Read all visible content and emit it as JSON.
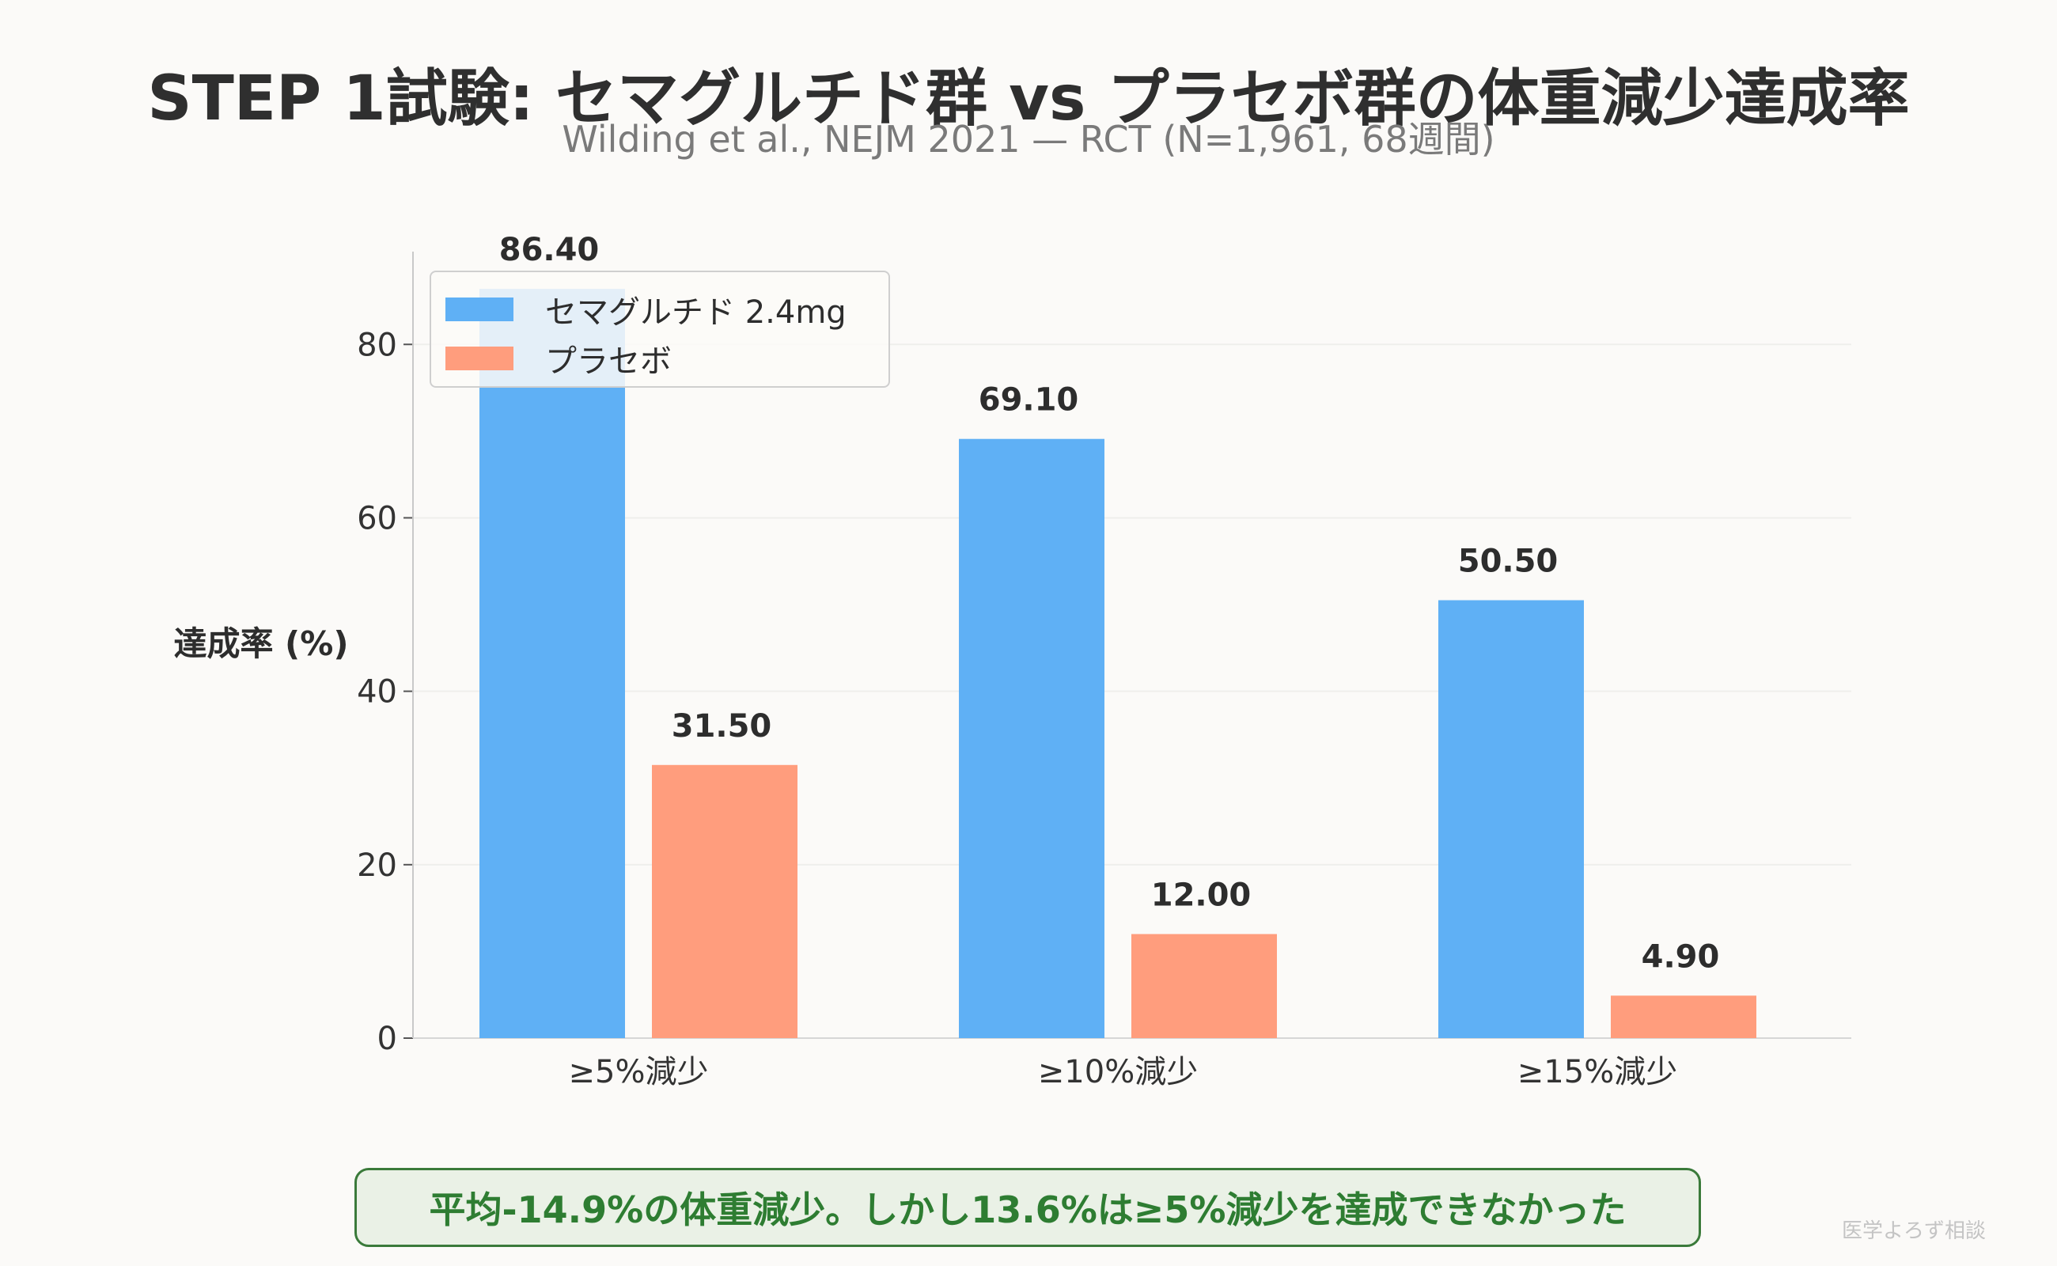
{
  "chart_data": {
    "type": "bar",
    "title": "STEP 1試験: セマグルチド群 vs プラセボ群の体重減少達成率",
    "subtitle": "Wilding et al., NEJM 2021 — RCT (N=1,961, 68週間)",
    "xlabel": "",
    "ylabel": "達成率 (%)",
    "categories": [
      "≥5%減少",
      "≥10%減少",
      "≥15%減少"
    ],
    "series": [
      {
        "name": "セマグルチド 2.4mg",
        "values": [
          86.4,
          69.1,
          50.5
        ],
        "labels": [
          "86.40",
          "69.10",
          "50.50"
        ],
        "color": "#5fb0f5"
      },
      {
        "name": "プラセボ",
        "values": [
          31.5,
          12.0,
          4.9
        ],
        "labels": [
          "31.50",
          "12.00",
          "4.90"
        ],
        "color": "#ff9d7d"
      }
    ],
    "ylim": [
      0,
      90.7
    ],
    "yticks": [
      0,
      20,
      40,
      60,
      80
    ],
    "grid": true,
    "legend_position": "top-left"
  },
  "note": "平均-14.9%の体重減少。しかし13.6%は≥5%減少を達成できなかった",
  "watermark": "医学よろず相談"
}
